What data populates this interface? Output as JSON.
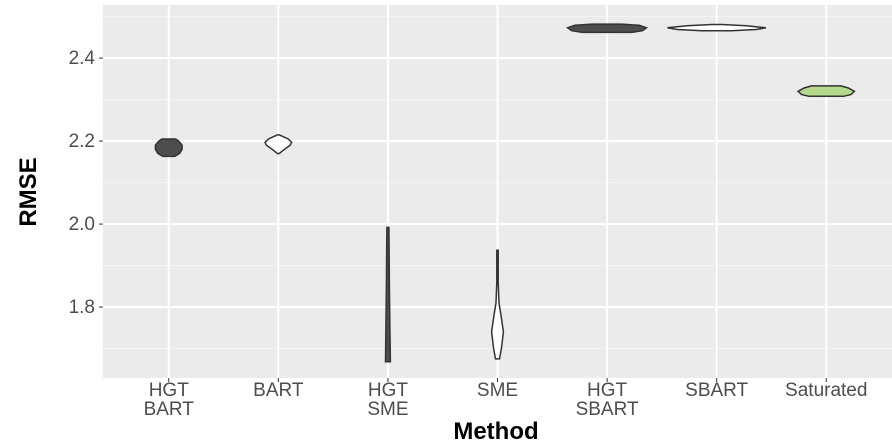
{
  "chart_data": {
    "type": "violin",
    "x_label": "Method",
    "y_label": "RMSE",
    "categories": [
      "HGT\nBART",
      "BART",
      "HGT\nSME",
      "SME",
      "HGT\nSBART",
      "SBART",
      "Saturated"
    ],
    "ylim": [
      1.629,
      2.528
    ],
    "yticks": [
      {
        "value": 1.8,
        "label": "1.8"
      },
      {
        "value": 2.0,
        "label": "2.0"
      },
      {
        "value": 2.2,
        "label": "2.2"
      },
      {
        "value": 2.4,
        "label": "2.4"
      }
    ],
    "yminor": [
      1.7,
      1.9,
      2.1,
      2.3,
      2.5
    ],
    "grid": true,
    "violins": [
      {
        "color": "#4d4d4d",
        "y": [
          2.163,
          2.17,
          2.18,
          2.19,
          2.2,
          2.205
        ],
        "width": [
          0.12,
          0.22,
          0.27,
          0.27,
          0.2,
          0.14
        ]
      },
      {
        "color": "#ffffff",
        "y": [
          2.17,
          2.178,
          2.19,
          2.197,
          2.205,
          2.215
        ],
        "width": [
          0.02,
          0.1,
          0.24,
          0.27,
          0.2,
          0.02
        ]
      },
      {
        "color": "#4d4d4d",
        "y": [
          1.668,
          1.75,
          1.85,
          1.95,
          1.992
        ],
        "width": [
          0.05,
          0.04,
          0.03,
          0.025,
          0.02
        ]
      },
      {
        "color": "#ffffff",
        "y": [
          1.675,
          1.7,
          1.74,
          1.78,
          1.81,
          1.86,
          1.9,
          1.937
        ],
        "width": [
          0.04,
          0.08,
          0.12,
          0.07,
          0.03,
          0.015,
          0.015,
          0.015
        ]
      },
      {
        "color": "#4d4d4d",
        "y": [
          2.462,
          2.466,
          2.473,
          2.479,
          2.482
        ],
        "width": [
          0.5,
          0.72,
          0.8,
          0.65,
          0.3
        ]
      },
      {
        "color": "#ffffff",
        "y": [
          2.466,
          2.469,
          2.473,
          2.478,
          2.481
        ],
        "width": [
          0.3,
          0.8,
          1.0,
          0.6,
          0.1
        ]
      },
      {
        "color": "#b5d98c",
        "y": [
          2.308,
          2.312,
          2.32,
          2.328,
          2.333
        ],
        "width": [
          0.35,
          0.5,
          0.57,
          0.45,
          0.3
        ]
      }
    ]
  }
}
